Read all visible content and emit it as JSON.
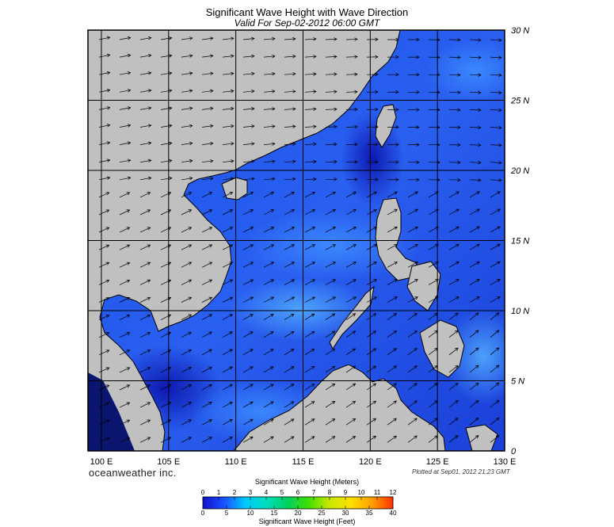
{
  "title": "Significant Wave Height with Wave Direction",
  "subtitle": "Valid For Sep-02-2012 06:00 GMT",
  "map": {
    "lon_range": [
      99,
      130
    ],
    "lat_range": [
      0,
      30
    ],
    "grid_step_deg": 5,
    "lat_labels": [
      "30 N",
      "25 N",
      "20 N",
      "15 N",
      "10 N",
      "5 N",
      "0"
    ],
    "lat_values": [
      30,
      25,
      20,
      15,
      10,
      5,
      0
    ],
    "lon_labels": [
      "100 E",
      "105 E",
      "110 E",
      "115 E",
      "120 E",
      "125 E",
      "130 E"
    ],
    "lon_values": [
      100,
      105,
      110,
      115,
      120,
      125,
      130
    ],
    "colors": {
      "ocean": "#1a3fe0",
      "land": "#c0c0c0",
      "grid": "#000000",
      "arrow": "#000000"
    },
    "wave_direction": "generally toward the east / north-east (southwest monsoon)"
  },
  "brand": "oceanweather inc.",
  "plotted": "Plotted at Sep01, 2012 21:23 GMT",
  "legend": {
    "meters_title": "Significant Wave Height (Meters)",
    "feet_title": "Significant Wave Height (Feet)",
    "meters_ticks": [
      "0",
      "1",
      "2",
      "3",
      "4",
      "5",
      "6",
      "7",
      "8",
      "9",
      "10",
      "11",
      "12"
    ],
    "meters_values": [
      0,
      1,
      2,
      3,
      4,
      5,
      6,
      7,
      8,
      9,
      10,
      11,
      12
    ],
    "feet_ticks": [
      "0",
      "5",
      "10",
      "15",
      "20",
      "25",
      "30",
      "35",
      "40"
    ],
    "feet_values": [
      0,
      5,
      10,
      15,
      20,
      25,
      30,
      35,
      40
    ],
    "max_meters": 12,
    "max_feet": 40,
    "gradient_stops": [
      "#1010c8",
      "#1a50ff",
      "#00c8ff",
      "#00e0c0",
      "#00d060",
      "#40e000",
      "#c8e800",
      "#ffe000",
      "#ffa000",
      "#ff3000"
    ]
  }
}
